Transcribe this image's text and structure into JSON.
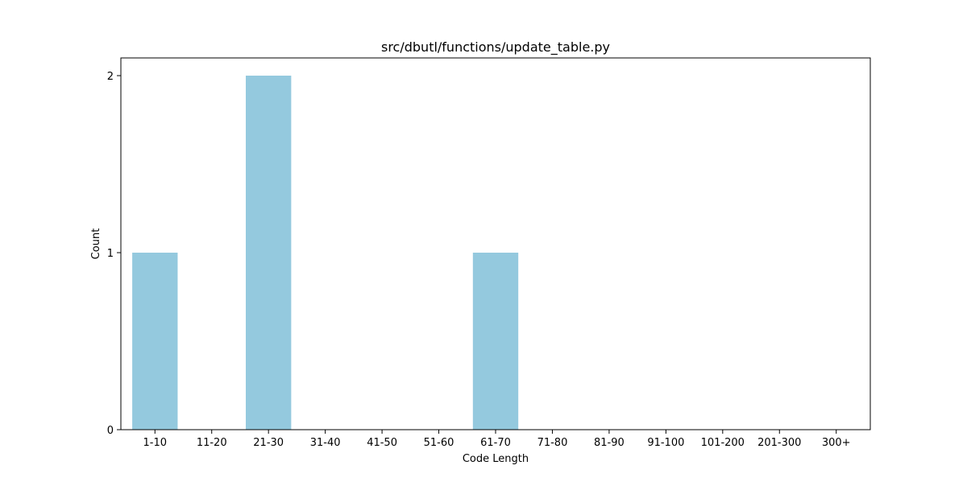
{
  "chart_data": {
    "type": "bar",
    "title": "src/dbutl/functions/update_table.py",
    "xlabel": "Code Length",
    "ylabel": "Count",
    "categories": [
      "1-10",
      "11-20",
      "21-30",
      "31-40",
      "41-50",
      "51-60",
      "61-70",
      "71-80",
      "81-90",
      "91-100",
      "101-200",
      "201-300",
      "300+"
    ],
    "values": [
      1,
      0,
      2,
      0,
      0,
      0,
      1,
      0,
      0,
      0,
      0,
      0,
      0
    ],
    "ylim": [
      0,
      2.1
    ],
    "yticks": [
      0,
      1,
      2
    ],
    "grid": false,
    "legend": "none",
    "bar_color": "#94c9de"
  }
}
